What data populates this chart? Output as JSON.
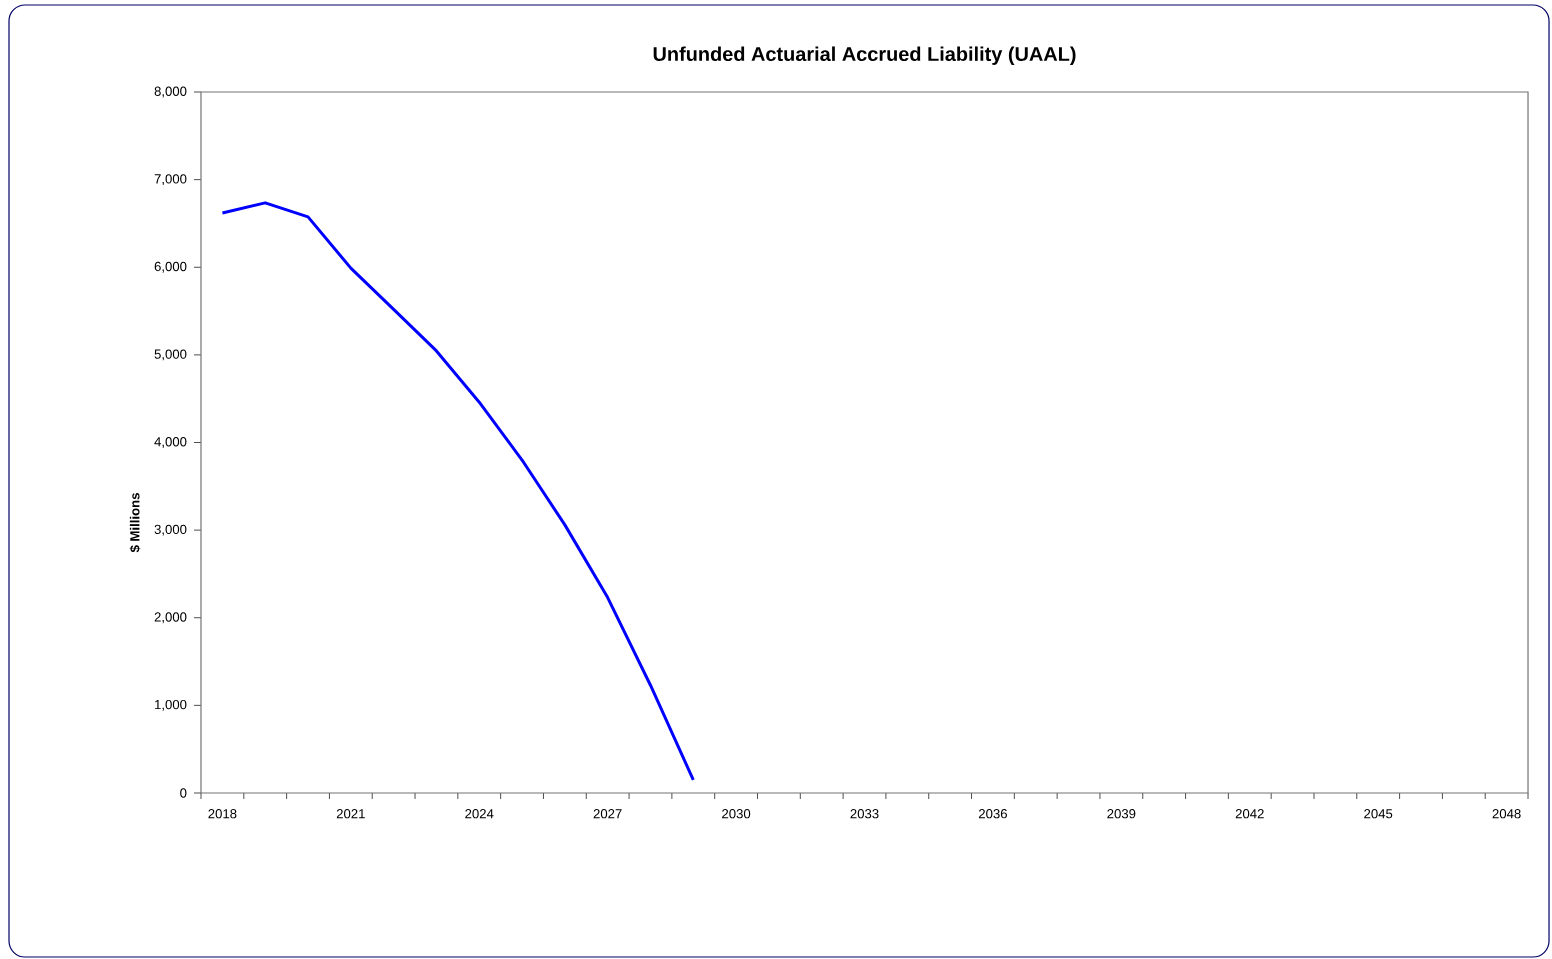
{
  "chart_data": {
    "type": "line",
    "title": "Unfunded Actuarial Accrued Liability (UAAL)",
    "ylabel": "$ Millions",
    "categories": [
      "2018",
      null,
      null,
      "2021",
      null,
      null,
      "2024",
      null,
      null,
      "2027",
      null,
      null,
      "2030",
      null,
      null,
      "2033",
      null,
      null,
      "2036",
      null,
      null,
      "2039",
      null,
      null,
      "2042",
      null,
      null,
      "2045",
      null,
      null,
      "2048"
    ],
    "series": [
      {
        "color": "#0000ff",
        "values": [
          6620,
          6735,
          6575,
          5990,
          5520,
          5045,
          4460,
          3800,
          3060,
          2230,
          1230,
          150,
          null,
          null,
          null,
          null,
          null,
          null,
          null,
          null,
          null,
          null,
          null,
          null,
          null,
          null,
          null,
          null,
          null,
          null,
          null
        ]
      }
    ],
    "ylim": [
      0,
      8000
    ],
    "yticks": [
      {
        "value": 0,
        "label": "0"
      },
      {
        "value": 1000,
        "label": "1,000"
      },
      {
        "value": 2000,
        "label": "2,000"
      },
      {
        "value": 3000,
        "label": "3,000"
      },
      {
        "value": 4000,
        "label": "4,000"
      },
      {
        "value": 5000,
        "label": "5,000"
      },
      {
        "value": 6000,
        "label": "6,000"
      },
      {
        "value": 7000,
        "label": "7,000"
      },
      {
        "value": 8000,
        "label": "8,000"
      }
    ],
    "grid": false,
    "legend": false,
    "marker": "none",
    "line_style": "solid"
  }
}
